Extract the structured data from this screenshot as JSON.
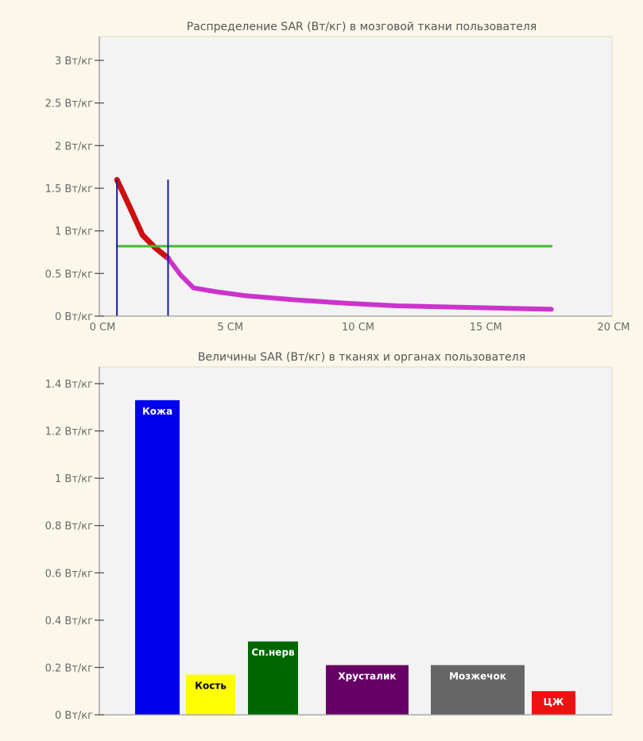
{
  "chart_data": [
    {
      "type": "line",
      "title": "Распределение SAR (Вт/кг) в мозговой ткани пользователя",
      "xlabel": "",
      "ylabel": "",
      "xlim": [
        0,
        20
      ],
      "ylim": [
        0,
        3
      ],
      "x_ticks": [
        {
          "value": 0,
          "label": "0 СМ"
        },
        {
          "value": 5,
          "label": "5 СМ"
        },
        {
          "value": 10,
          "label": "10 СМ"
        },
        {
          "value": 15,
          "label": "15 СМ"
        },
        {
          "value": 20,
          "label": "20 СМ"
        }
      ],
      "y_ticks": [
        {
          "value": 0,
          "label": "0 Вт/кг"
        },
        {
          "value": 0.5,
          "label": "0.5 Вт/кг"
        },
        {
          "value": 1,
          "label": "1 Вт/кг"
        },
        {
          "value": 1.5,
          "label": "1.5 Вт/кг"
        },
        {
          "value": 2,
          "label": "2 Вт/кг"
        },
        {
          "value": 2.5,
          "label": "2.5 Вт/кг"
        },
        {
          "value": 3,
          "label": "3 Вт/кг"
        }
      ],
      "series": [
        {
          "color": "#cc1010",
          "x": [
            1.0,
            1.5,
            2.0,
            2.5,
            3.0
          ],
          "y": [
            1.6,
            1.28,
            0.95,
            0.8,
            0.68
          ]
        },
        {
          "color": "#cc33cc",
          "x": [
            3.0,
            3.5,
            4.0,
            5.0,
            6.0,
            8.0,
            10.0,
            12.0,
            15.0,
            18.0
          ],
          "y": [
            0.68,
            0.48,
            0.33,
            0.28,
            0.24,
            0.19,
            0.15,
            0.12,
            0.1,
            0.08
          ]
        },
        {
          "color": "#44bb33",
          "x": [
            1.0,
            18.0
          ],
          "y": [
            0.82,
            0.82
          ]
        }
      ],
      "vertical_markers": [
        {
          "x": 1.0,
          "y_top": 1.6,
          "color": "#1a1a9c"
        },
        {
          "x": 3.0,
          "y_top": 1.6,
          "color": "#1a1a9c"
        }
      ],
      "grid": false
    },
    {
      "type": "bar",
      "title": "Величины SAR (Вт/кг) в тканях и органах пользователя",
      "xlabel": "",
      "ylabel": "",
      "ylim": [
        0,
        1.4
      ],
      "y_ticks": [
        {
          "value": 0,
          "label": "0 Вт/кг"
        },
        {
          "value": 0.2,
          "label": "0.2 Вт/кг"
        },
        {
          "value": 0.4,
          "label": "0.4 Вт/кг"
        },
        {
          "value": 0.6,
          "label": "0.6 Вт/кг"
        },
        {
          "value": 0.8,
          "label": "0.8 Вт/кг"
        },
        {
          "value": 1,
          "label": "1 Вт/кг"
        },
        {
          "value": 1.2,
          "label": "1.2 Вт/кг"
        },
        {
          "value": 1.4,
          "label": "1.4 Вт/кг"
        }
      ],
      "categories": [
        "Кожа",
        "Кость",
        "Сп.нерв",
        "Хрусталик",
        "Мозжечок",
        "ЦЖ"
      ],
      "values": [
        1.33,
        0.17,
        0.31,
        0.21,
        0.21,
        0.1
      ],
      "colors": [
        "#0000ee",
        "#ffff00",
        "#006600",
        "#660066",
        "#666666",
        "#ee1111"
      ],
      "label_colors": [
        "#ffffff",
        "#000000",
        "#ffffff",
        "#ffffff",
        "#ffffff",
        "#ffffff"
      ],
      "grid": false
    }
  ]
}
